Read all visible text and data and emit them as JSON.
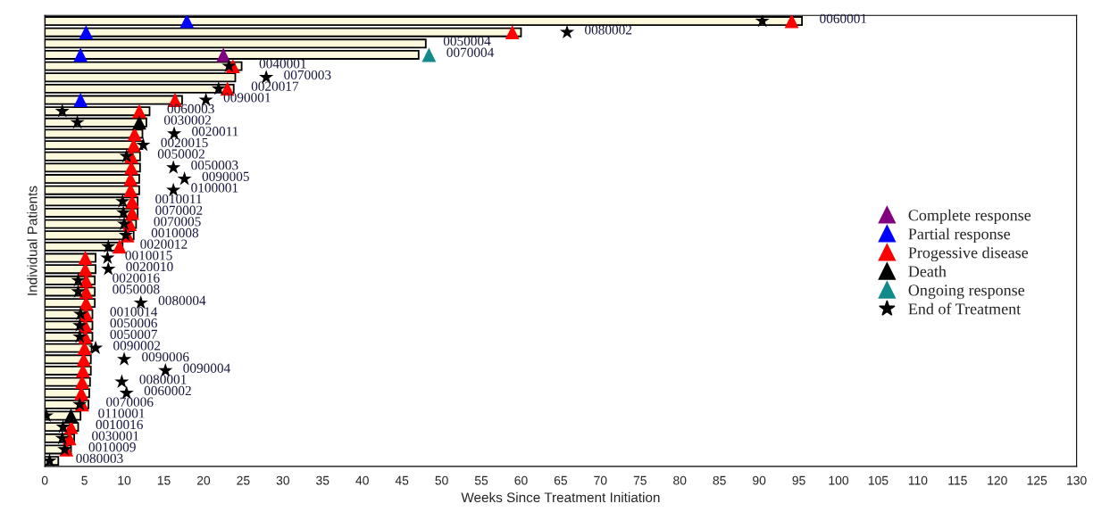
{
  "chart_data": {
    "type": "bar",
    "orientation": "horizontal",
    "xlabel": "Weeks Since Treatment Initiation",
    "ylabel": "Individual Patients",
    "categories": [
      "0060001",
      "0080002",
      "0050004",
      "0070004",
      "0040001",
      "0070003",
      "0020017",
      "0090001",
      "0060003",
      "0030002",
      "0020011",
      "0020015",
      "0050002",
      "0050003",
      "0090005",
      "0100001",
      "0010011",
      "0070002",
      "0070005",
      "0010008",
      "0020012",
      "0010015",
      "0020010",
      "0020016",
      "0050008",
      "0080004",
      "0010014",
      "0050006",
      "0050007",
      "0090002",
      "0090006",
      "0090004",
      "0080001",
      "0060002",
      "0070006",
      "0110001",
      "0010016",
      "0030001",
      "0010009",
      "0080003"
    ],
    "series": [
      {
        "color": "#fbf8dc",
        "values": [
          95.4,
          60.0,
          48.0,
          47.1,
          24.8,
          24.0,
          23.8,
          17.3,
          13.2,
          12.8,
          12.3,
          12.3,
          12.0,
          12.0,
          11.9,
          11.9,
          11.7,
          11.7,
          11.5,
          11.2,
          9.8,
          6.4,
          6.4,
          6.3,
          6.3,
          6.3,
          6.0,
          6.0,
          6.0,
          5.9,
          5.8,
          5.8,
          5.7,
          5.6,
          5.5,
          4.5,
          4.2,
          3.7,
          3.3,
          1.7
        ]
      },
      {
        "type": "scatter",
        "name": "Complete response",
        "color": "#800080",
        "marker": "triangle",
        "values": [
          null,
          null,
          null,
          22.5,
          null,
          null,
          null,
          null,
          null,
          null,
          null,
          null,
          null,
          null,
          null,
          null,
          null,
          null,
          null,
          null,
          null,
          null,
          null,
          null,
          null,
          null,
          null,
          null,
          null,
          null,
          null,
          null,
          null,
          null,
          null,
          null,
          null,
          null,
          null,
          null
        ]
      },
      {
        "type": "scatter",
        "name": "Partial response",
        "color": "#0000ff",
        "marker": "triangle",
        "values": [
          17.9,
          5.2,
          null,
          4.5,
          null,
          null,
          null,
          4.5,
          null,
          null,
          null,
          null,
          null,
          null,
          null,
          null,
          null,
          null,
          null,
          null,
          null,
          null,
          null,
          null,
          null,
          null,
          null,
          null,
          null,
          null,
          null,
          null,
          null,
          null,
          null,
          null,
          null,
          null,
          null,
          null
        ]
      },
      {
        "type": "scatter",
        "name": "Progessive disease",
        "color": "#ff0000",
        "marker": "triangle",
        "values": [
          94.1,
          58.9,
          null,
          null,
          23.7,
          null,
          23.0,
          16.4,
          11.9,
          null,
          11.3,
          11.2,
          10.9,
          10.9,
          10.8,
          10.8,
          11.0,
          11.0,
          10.7,
          10.4,
          9.4,
          5.1,
          5.1,
          5.2,
          5.2,
          5.2,
          5.2,
          5.1,
          5.1,
          5.0,
          4.9,
          4.8,
          4.7,
          4.6,
          4.7,
          null,
          3.3,
          3.1,
          2.7,
          null
        ]
      },
      {
        "type": "scatter",
        "name": "Death",
        "color": "#000000",
        "marker": "triangle",
        "values": [
          null,
          null,
          null,
          null,
          null,
          null,
          null,
          null,
          null,
          11.9,
          null,
          null,
          null,
          null,
          null,
          null,
          null,
          null,
          null,
          null,
          null,
          null,
          null,
          null,
          null,
          null,
          null,
          null,
          null,
          null,
          null,
          null,
          null,
          null,
          null,
          3.3,
          null,
          null,
          null,
          null
        ]
      },
      {
        "type": "scatter",
        "name": "Ongoing response",
        "color": "#138a8a",
        "marker": "triangle",
        "values": [
          null,
          null,
          null,
          48.4,
          null,
          null,
          null,
          null,
          null,
          null,
          null,
          null,
          null,
          null,
          null,
          null,
          null,
          null,
          null,
          null,
          null,
          null,
          null,
          null,
          null,
          null,
          null,
          null,
          null,
          null,
          null,
          null,
          null,
          null,
          null,
          null,
          null,
          null,
          null,
          null
        ]
      },
      {
        "type": "scatter",
        "name": "End of Treatment",
        "color": "#000000",
        "marker": "star",
        "values": [
          90.4,
          65.8,
          null,
          null,
          23.2,
          27.9,
          21.9,
          20.3,
          2.2,
          4.1,
          16.3,
          12.4,
          10.3,
          16.2,
          17.6,
          16.2,
          9.8,
          9.9,
          10.0,
          10.2,
          8.0,
          7.9,
          8.0,
          4.2,
          4.2,
          12.1,
          4.5,
          4.4,
          4.4,
          6.4,
          10.0,
          15.2,
          9.7,
          10.3,
          4.4,
          0.2,
          2.3,
          2.2,
          2.5,
          0.6
        ]
      }
    ],
    "xlim": [
      0,
      130
    ],
    "xticks": [
      0,
      5,
      10,
      15,
      20,
      25,
      30,
      35,
      40,
      45,
      50,
      55,
      60,
      65,
      70,
      75,
      80,
      85,
      90,
      95,
      100,
      105,
      110,
      115,
      120,
      125,
      130
    ],
    "tick_labels": "x",
    "grid": false,
    "legend": "right"
  }
}
